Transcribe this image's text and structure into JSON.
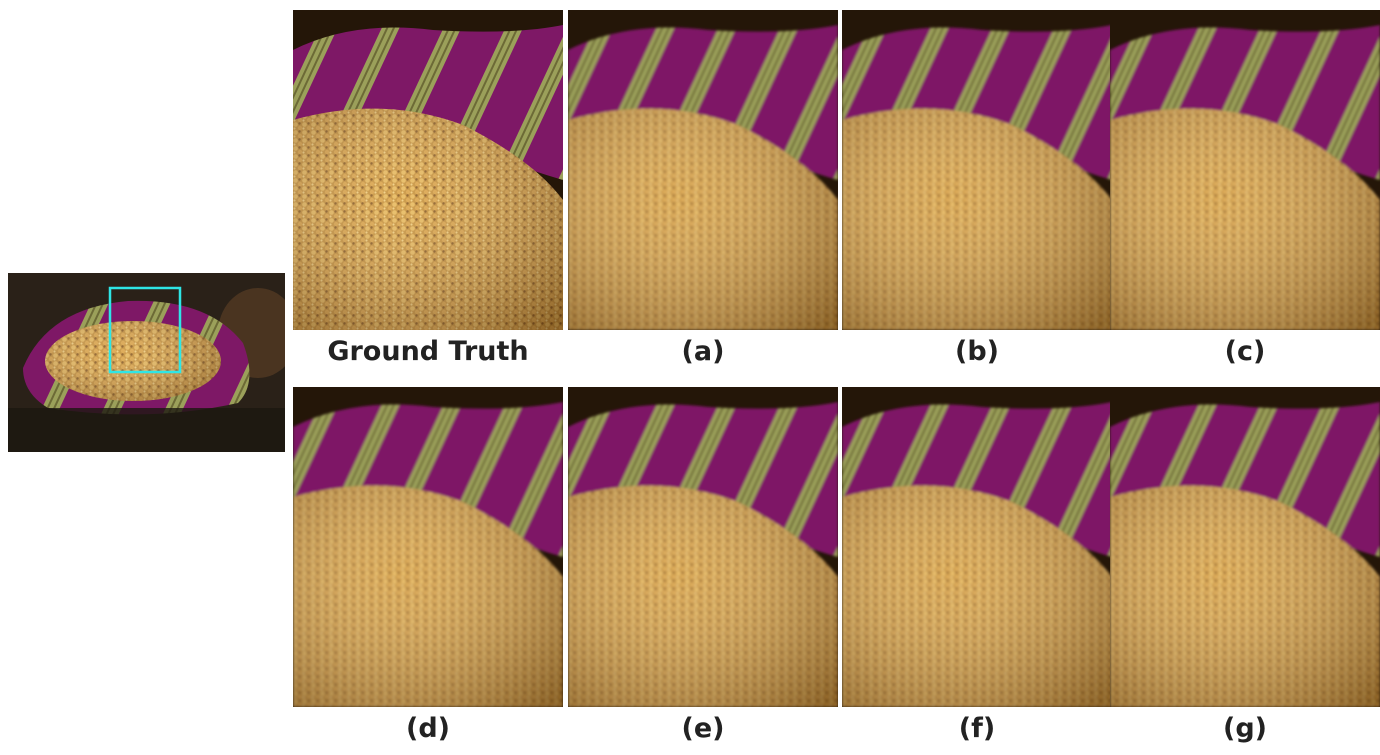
{
  "panels": [
    "Ground Truth",
    "(a)",
    "(b)",
    "(c)",
    "(d)",
    "(e)",
    "(f)",
    "(g)"
  ]
}
